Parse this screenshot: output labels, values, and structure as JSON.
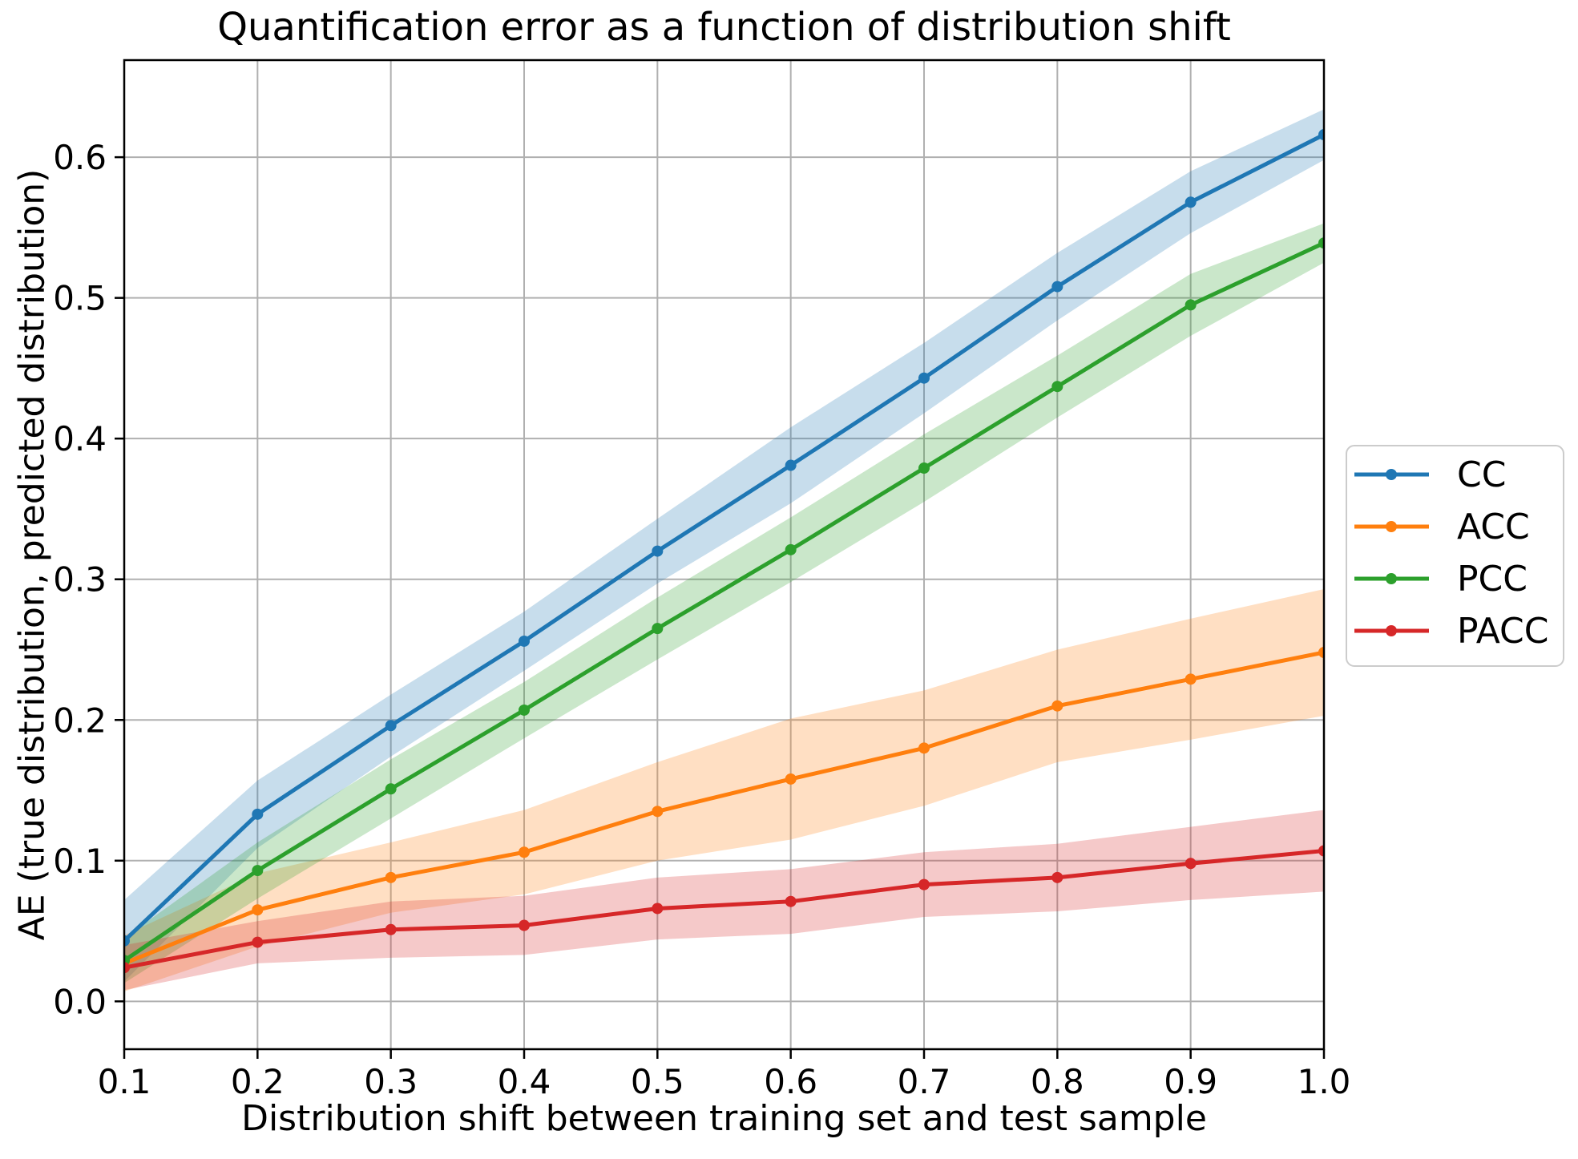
{
  "figure": {
    "title": "Quantification error as a function of distribution shift",
    "xlabel": "Distribution shift between training set and test sample",
    "ylabel": "AE (true distribution, predicted distribution)"
  },
  "chart_data": {
    "type": "line",
    "title": "Quantification error as a function of distribution shift",
    "xlabel": "Distribution shift between training set and test sample",
    "ylabel": "AE (true distribution, predicted distribution)",
    "grid": true,
    "legend_position": "outside-right",
    "background": "#ffffff",
    "grid_color": "#b0b0b0",
    "spine_color": "#000000",
    "band_alpha": 0.25,
    "x": [
      0.1,
      0.2,
      0.3,
      0.4,
      0.5,
      0.6,
      0.7,
      0.8,
      0.9,
      1.0
    ],
    "x_tick_labels": [
      "0.1",
      "0.2",
      "0.3",
      "0.4",
      "0.5",
      "0.6",
      "0.7",
      "0.8",
      "0.9",
      "1.0"
    ],
    "y_ticks": [
      0.0,
      0.1,
      0.2,
      0.3,
      0.4,
      0.5,
      0.6
    ],
    "y_tick_labels": [
      "0.0",
      "0.1",
      "0.2",
      "0.3",
      "0.4",
      "0.5",
      "0.6"
    ],
    "xlim": [
      0.1,
      1.0
    ],
    "ylim": [
      -0.034,
      0.669
    ],
    "series": [
      {
        "name": "CC",
        "color": "#1f77b4",
        "values": [
          0.043,
          0.133,
          0.196,
          0.256,
          0.32,
          0.381,
          0.443,
          0.508,
          0.568,
          0.616
        ],
        "band_halfwidth": [
          0.029,
          0.024,
          0.022,
          0.021,
          0.023,
          0.027,
          0.025,
          0.024,
          0.022,
          0.018
        ]
      },
      {
        "name": "ACC",
        "color": "#ff7f0e",
        "values": [
          0.027,
          0.065,
          0.088,
          0.106,
          0.135,
          0.158,
          0.18,
          0.21,
          0.229,
          0.248
        ],
        "band_halfwidth": [
          0.02,
          0.026,
          0.025,
          0.03,
          0.035,
          0.043,
          0.041,
          0.04,
          0.043,
          0.045
        ]
      },
      {
        "name": "PCC",
        "color": "#2ca02c",
        "values": [
          0.029,
          0.093,
          0.151,
          0.207,
          0.265,
          0.321,
          0.379,
          0.437,
          0.495,
          0.539
        ],
        "band_halfwidth": [
          0.016,
          0.02,
          0.021,
          0.02,
          0.022,
          0.023,
          0.024,
          0.022,
          0.022,
          0.014
        ]
      },
      {
        "name": "PACC",
        "color": "#d62728",
        "values": [
          0.024,
          0.042,
          0.051,
          0.054,
          0.066,
          0.071,
          0.083,
          0.088,
          0.098,
          0.107
        ],
        "band_halfwidth": [
          0.016,
          0.015,
          0.02,
          0.021,
          0.022,
          0.023,
          0.023,
          0.024,
          0.026,
          0.029
        ]
      }
    ]
  }
}
